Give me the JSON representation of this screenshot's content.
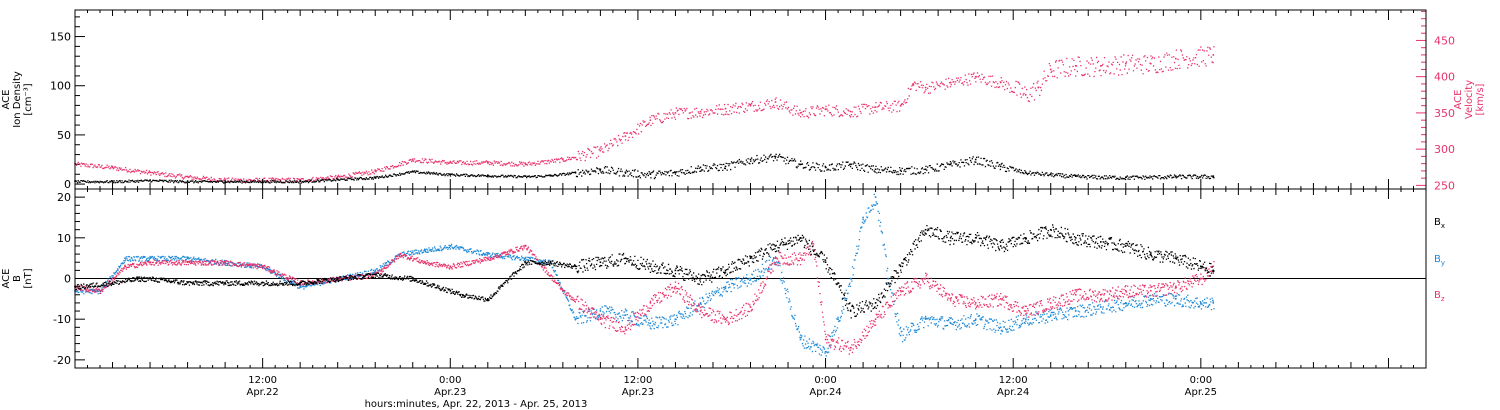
{
  "chart_data": [
    {
      "type": "scatter",
      "panel": "top",
      "ylabel_lines": [
        "ACE",
        "Ion Density",
        "[cm⁻³]"
      ],
      "y2label_lines": [
        "ACE",
        "Velocity",
        "[km/s]"
      ],
      "ylim": [
        -5,
        177
      ],
      "yticks": [
        0,
        50,
        100,
        150
      ],
      "y2lim": [
        245,
        492
      ],
      "y2ticks": [
        250,
        300,
        350,
        400,
        450
      ],
      "colors": {
        "density": "#000000",
        "velocity": "#e8336b"
      },
      "series": [
        {
          "key": "density",
          "axis": "left",
          "x": [
            0,
            6,
            12,
            18,
            24,
            30,
            36,
            42,
            48,
            54,
            60,
            66,
            72,
            76,
            80,
            84,
            88,
            92,
            96,
            100,
            104,
            108,
            112,
            116,
            120,
            124,
            128,
            132,
            136,
            140,
            144,
            148,
            152,
            156,
            160,
            168,
            176,
            182
          ],
          "values": [
            3,
            3,
            4,
            3,
            3,
            3,
            3,
            5,
            7,
            13,
            10,
            9,
            8,
            9,
            12,
            15,
            12,
            10,
            12,
            17,
            18,
            25,
            28,
            20,
            17,
            20,
            15,
            14,
            15,
            20,
            25,
            18,
            12,
            10,
            8,
            7,
            8,
            8
          ]
        },
        {
          "key": "velocity",
          "axis": "right",
          "x": [
            0,
            6,
            12,
            18,
            24,
            30,
            36,
            42,
            48,
            54,
            60,
            66,
            72,
            78,
            84,
            88,
            92,
            96,
            100,
            104,
            108,
            112,
            116,
            120,
            124,
            128,
            132,
            134,
            136,
            140,
            144,
            148,
            152,
            154,
            156,
            160,
            164,
            168,
            172,
            176,
            182
          ],
          "values": [
            280,
            275,
            268,
            262,
            258,
            258,
            258,
            262,
            270,
            286,
            282,
            282,
            280,
            286,
            298,
            318,
            340,
            350,
            352,
            356,
            360,
            365,
            350,
            355,
            352,
            358,
            360,
            390,
            385,
            392,
            400,
            392,
            375,
            385,
            410,
            415,
            415,
            418,
            418,
            425,
            430
          ]
        }
      ]
    },
    {
      "type": "scatter",
      "panel": "bottom",
      "ylabel_lines": [
        "ACE",
        "B",
        "[nT]"
      ],
      "ylim": [
        -22,
        22
      ],
      "yticks": [
        -20,
        -10,
        0,
        10,
        20
      ],
      "legend": [
        {
          "label": "B",
          "sub": "x",
          "color": "#000000"
        },
        {
          "label": "B",
          "sub": "y",
          "color": "#1f8ad8"
        },
        {
          "label": "B",
          "sub": "z",
          "color": "#e8336b"
        }
      ],
      "series": [
        {
          "key": "Bx",
          "x": [
            0,
            6,
            10,
            12,
            18,
            24,
            30,
            36,
            42,
            48,
            54,
            60,
            62,
            66,
            72,
            76,
            80,
            84,
            88,
            92,
            96,
            100,
            104,
            108,
            112,
            116,
            120,
            124,
            128,
            132,
            136,
            140,
            144,
            148,
            152,
            156,
            160,
            164,
            168,
            172,
            176,
            180,
            182
          ],
          "values": [
            -2,
            -1,
            0,
            0,
            -1,
            -1,
            -1,
            -1,
            0,
            1,
            0,
            -3,
            -4,
            -5,
            4,
            4,
            3,
            4,
            5,
            3,
            2,
            0,
            2,
            5,
            8,
            10,
            4,
            -8,
            -6,
            3,
            12,
            10,
            10,
            8,
            10,
            12,
            10,
            9,
            8,
            6,
            5,
            3,
            2
          ]
        },
        {
          "key": "By",
          "x": [
            0,
            4,
            8,
            12,
            18,
            24,
            30,
            36,
            42,
            48,
            52,
            56,
            60,
            66,
            72,
            76,
            80,
            84,
            88,
            92,
            96,
            100,
            104,
            108,
            112,
            116,
            120,
            122,
            124,
            126,
            128,
            130,
            132,
            136,
            140,
            144,
            148,
            152,
            156,
            160,
            164,
            168,
            172,
            176,
            180,
            182
          ],
          "values": [
            -3,
            -3,
            5,
            5,
            5,
            4,
            3,
            -2,
            0,
            2,
            6,
            7,
            8,
            6,
            5,
            4,
            -10,
            -8,
            -9,
            -11,
            -10,
            -6,
            -2,
            0,
            5,
            -15,
            -18,
            -10,
            0,
            15,
            20,
            0,
            -14,
            -10,
            -11,
            -10,
            -12,
            -10,
            -9,
            -8,
            -7,
            -6,
            -5,
            -5,
            -6,
            -6
          ]
        },
        {
          "key": "Bz",
          "x": [
            0,
            4,
            8,
            12,
            18,
            24,
            30,
            36,
            42,
            48,
            52,
            56,
            60,
            66,
            72,
            78,
            84,
            88,
            92,
            96,
            100,
            104,
            108,
            112,
            116,
            118,
            120,
            124,
            128,
            132,
            136,
            140,
            144,
            148,
            152,
            156,
            160,
            164,
            168,
            172,
            176,
            180,
            182
          ],
          "values": [
            -2,
            -3,
            3,
            4,
            4,
            4,
            3,
            -1,
            0,
            1,
            6,
            4,
            3,
            5,
            8,
            -3,
            -10,
            -12,
            -6,
            -2,
            -8,
            -10,
            -7,
            5,
            5,
            8,
            -15,
            -17,
            -10,
            -3,
            0,
            -5,
            -6,
            -5,
            -8,
            -6,
            -4,
            -4,
            -3,
            -3,
            -2,
            0,
            3
          ]
        }
      ]
    }
  ],
  "x_axis": {
    "xlim": [
      0,
      216
    ],
    "ticks": [
      {
        "x": 0,
        "line1": "",
        "line2": ""
      },
      {
        "x": 30,
        "line1": "12:00",
        "line2": "Apr.22"
      },
      {
        "x": 60,
        "line1": "0:00",
        "line2": "Apr.23"
      },
      {
        "x": 90,
        "line1": "12:00",
        "line2": "Apr.23"
      },
      {
        "x": 120,
        "line1": "0:00",
        "line2": "Apr.24"
      },
      {
        "x": 150,
        "line1": "12:00",
        "line2": "Apr.24"
      },
      {
        "x": 180,
        "line1": "0:00",
        "line2": "Apr.25"
      }
    ],
    "xlabel": "hours:minutes, Apr. 22, 2013 - Apr. 25, 2013"
  }
}
